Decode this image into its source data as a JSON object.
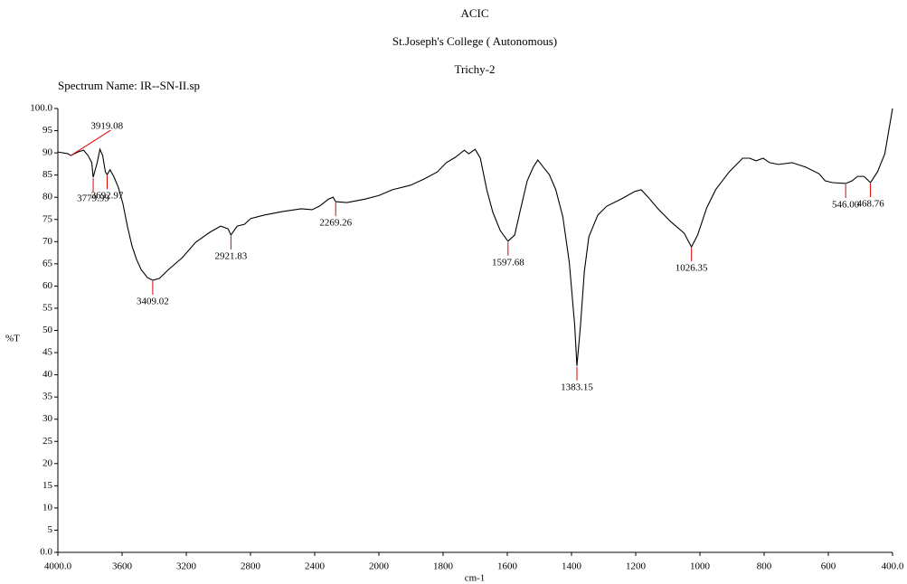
{
  "chart_data": {
    "type": "line",
    "title": "ACIC",
    "subtitle": [
      "St.Joseph's College ( Autonomous)",
      "Trichy-2"
    ],
    "spectrum_name": "Spectrum Name: IR--SN-II.sp",
    "xlabel": "cm-1",
    "ylabel": "%T",
    "color": "#000000",
    "x": [
      4000,
      3937,
      3919,
      3875,
      3840,
      3812,
      3789,
      3779.99,
      3755,
      3738,
      3721,
      3704,
      3692.97,
      3675,
      3652,
      3624,
      3595,
      3567,
      3538,
      3510,
      3481,
      3442,
      3409.02,
      3368,
      3311,
      3225,
      3140,
      3054,
      2986,
      2940,
      2921.83,
      2883,
      2838,
      2798,
      2712,
      2598,
      2484,
      2416,
      2370,
      2313,
      2285,
      2269.26,
      2199,
      2085,
      2000,
      1958,
      1902,
      1860,
      1818,
      1790,
      1762,
      1734,
      1720,
      1700,
      1684,
      1664,
      1645,
      1622,
      1602,
      1597.68,
      1577,
      1561,
      1538,
      1519,
      1505,
      1488,
      1469,
      1449,
      1427,
      1407,
      1390,
      1383.15,
      1372,
      1360,
      1346,
      1318,
      1290,
      1245,
      1203,
      1183,
      1161,
      1133,
      1091,
      1049,
      1026.35,
      1007,
      979,
      951,
      909,
      867,
      845,
      825,
      803,
      783,
      755,
      713,
      671,
      629,
      610,
      587,
      546,
      526,
      509,
      489,
      468.76,
      447,
      424,
      400
    ],
    "y": [
      90.2,
      89.8,
      89.4,
      90.2,
      90.6,
      89.4,
      87.8,
      84.5,
      87.8,
      90.8,
      89.4,
      85.7,
      85.1,
      86.2,
      84.7,
      82.3,
      78.6,
      73.5,
      69.0,
      66.0,
      63.7,
      61.9,
      61.3,
      61.7,
      63.7,
      66.4,
      69.9,
      72.1,
      73.5,
      72.9,
      71.5,
      73.5,
      73.9,
      75.2,
      76.0,
      76.8,
      77.4,
      77.2,
      78.0,
      79.6,
      80.0,
      79.0,
      78.8,
      79.6,
      80.4,
      81.7,
      82.7,
      84.1,
      85.7,
      87.8,
      89.0,
      90.6,
      89.8,
      90.8,
      88.8,
      81.7,
      76.6,
      72.5,
      70.5,
      70.1,
      71.5,
      76.6,
      83.7,
      86.8,
      88.4,
      86.8,
      85.1,
      81.7,
      75.6,
      65.4,
      51.1,
      42.0,
      51.1,
      63.3,
      71.1,
      76.0,
      78.0,
      79.6,
      81.3,
      81.7,
      80.0,
      77.6,
      74.5,
      71.9,
      68.8,
      71.5,
      77.6,
      81.7,
      85.7,
      88.8,
      88.8,
      88.2,
      88.8,
      87.8,
      87.4,
      87.8,
      86.8,
      85.3,
      83.7,
      83.3,
      83.1,
      83.7,
      84.7,
      84.7,
      83.3,
      85.7,
      89.8,
      100.0
    ],
    "xlim": [
      4000,
      400
    ],
    "x_scale_break": 2000,
    "x_break_factor": 2,
    "xticks": [
      {
        "value": 4000,
        "label": "4000.0"
      },
      3600,
      3200,
      2800,
      2400,
      2000,
      1800,
      1600,
      1400,
      1200,
      1000,
      800,
      600,
      {
        "value": 400,
        "label": "400.0"
      }
    ],
    "ylim": [
      0,
      100
    ],
    "yticks": [
      {
        "value": 0,
        "label": "0.0"
      },
      5,
      10,
      15,
      20,
      25,
      30,
      35,
      40,
      45,
      50,
      55,
      60,
      65,
      70,
      75,
      80,
      85,
      90,
      95,
      {
        "value": 100,
        "label": "100.0"
      }
    ],
    "peak_x": [
      3919.08,
      3779.99,
      3692.97,
      3409.02,
      2921.83,
      2269.26,
      1597.68,
      1383.15,
      1026.35,
      546.0,
      468.76
    ],
    "peak_y": [
      89.4,
      84.5,
      85.1,
      61.3,
      71.5,
      79.0,
      70.1,
      42.0,
      68.8,
      83.1,
      83.3
    ],
    "peak_labels": [
      "3919.08",
      "3779.99",
      "3692.97",
      "3409.02",
      "2921.83",
      "2269.26",
      "1597.68",
      "1383.15",
      "1026.35",
      "546.00",
      "468.76"
    ],
    "peak_color": "#e00000"
  }
}
